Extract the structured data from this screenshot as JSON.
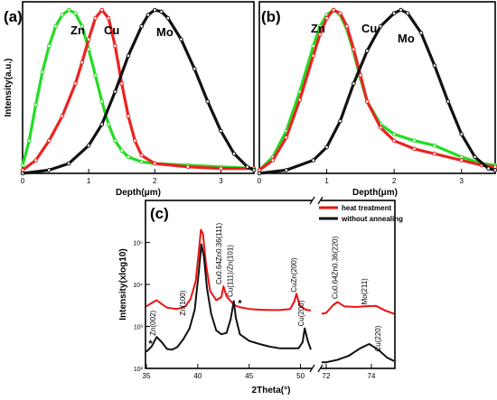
{
  "chart_data": [
    {
      "type": "line",
      "panel_label": "(a)",
      "xlabel": "Depth(μm)",
      "ylabel": "Intensity(a.u.)",
      "xlim": [
        0,
        3.5
      ],
      "ylim": [
        0,
        1.05
      ],
      "x_ticks": [
        0,
        1,
        2,
        3
      ],
      "y_ticks": [],
      "grid": false,
      "legend": "none",
      "series": [
        {
          "name": "Zn",
          "color": "#22dd22",
          "points": [
            [
              0,
              0.05
            ],
            [
              0.1,
              0.2
            ],
            [
              0.2,
              0.42
            ],
            [
              0.3,
              0.62
            ],
            [
              0.4,
              0.78
            ],
            [
              0.5,
              0.9
            ],
            [
              0.6,
              0.97
            ],
            [
              0.7,
              1.0
            ],
            [
              0.8,
              0.98
            ],
            [
              0.9,
              0.9
            ],
            [
              1.0,
              0.76
            ],
            [
              1.1,
              0.6
            ],
            [
              1.2,
              0.44
            ],
            [
              1.3,
              0.3
            ],
            [
              1.4,
              0.2
            ],
            [
              1.5,
              0.14
            ],
            [
              1.6,
              0.1
            ],
            [
              1.8,
              0.07
            ],
            [
              2.0,
              0.06
            ],
            [
              2.5,
              0.05
            ],
            [
              3.0,
              0.04
            ],
            [
              3.5,
              0.03
            ]
          ]
        },
        {
          "name": "Cu",
          "color": "#ee2222",
          "points": [
            [
              0,
              0.02
            ],
            [
              0.2,
              0.08
            ],
            [
              0.4,
              0.2
            ],
            [
              0.6,
              0.35
            ],
            [
              0.8,
              0.55
            ],
            [
              0.9,
              0.68
            ],
            [
              1.0,
              0.82
            ],
            [
              1.1,
              0.95
            ],
            [
              1.2,
              1.0
            ],
            [
              1.3,
              0.95
            ],
            [
              1.4,
              0.78
            ],
            [
              1.5,
              0.55
            ],
            [
              1.6,
              0.35
            ],
            [
              1.7,
              0.2
            ],
            [
              1.8,
              0.11
            ],
            [
              2.0,
              0.06
            ],
            [
              2.5,
              0.04
            ],
            [
              3.0,
              0.03
            ],
            [
              3.5,
              0.03
            ]
          ]
        },
        {
          "name": "Mo",
          "color": "#111111",
          "points": [
            [
              0,
              0.0
            ],
            [
              0.4,
              0.02
            ],
            [
              0.7,
              0.06
            ],
            [
              1.0,
              0.17
            ],
            [
              1.2,
              0.3
            ],
            [
              1.4,
              0.5
            ],
            [
              1.6,
              0.72
            ],
            [
              1.8,
              0.9
            ],
            [
              1.9,
              0.97
            ],
            [
              2.0,
              1.0
            ],
            [
              2.1,
              0.99
            ],
            [
              2.2,
              0.95
            ],
            [
              2.4,
              0.82
            ],
            [
              2.6,
              0.64
            ],
            [
              2.8,
              0.44
            ],
            [
              3.0,
              0.26
            ],
            [
              3.2,
              0.12
            ],
            [
              3.4,
              0.04
            ],
            [
              3.5,
              0.02
            ]
          ]
        }
      ]
    },
    {
      "type": "line",
      "panel_label": "(b)",
      "xlabel": "Depth(μm)",
      "ylabel": "",
      "xlim": [
        0,
        3.5
      ],
      "ylim": [
        0,
        1.05
      ],
      "x_ticks": [
        0,
        1,
        2,
        3
      ],
      "y_ticks": [],
      "grid": false,
      "legend": "none",
      "series": [
        {
          "name": "Zn",
          "color": "#22dd22",
          "points": [
            [
              0,
              0.02
            ],
            [
              0.2,
              0.1
            ],
            [
              0.4,
              0.26
            ],
            [
              0.6,
              0.5
            ],
            [
              0.8,
              0.78
            ],
            [
              0.9,
              0.9
            ],
            [
              1.0,
              0.97
            ],
            [
              1.1,
              1.0
            ],
            [
              1.2,
              0.97
            ],
            [
              1.3,
              0.88
            ],
            [
              1.4,
              0.74
            ],
            [
              1.5,
              0.58
            ],
            [
              1.6,
              0.44
            ],
            [
              1.8,
              0.3
            ],
            [
              2.0,
              0.24
            ],
            [
              2.3,
              0.2
            ],
            [
              2.6,
              0.17
            ],
            [
              3.0,
              0.1
            ],
            [
              3.3,
              0.06
            ],
            [
              3.5,
              0.05
            ]
          ]
        },
        {
          "name": "Cu",
          "color": "#ee2222",
          "points": [
            [
              0,
              0.02
            ],
            [
              0.2,
              0.08
            ],
            [
              0.4,
              0.22
            ],
            [
              0.6,
              0.45
            ],
            [
              0.8,
              0.72
            ],
            [
              0.9,
              0.85
            ],
            [
              1.0,
              0.95
            ],
            [
              1.1,
              1.0
            ],
            [
              1.2,
              0.98
            ],
            [
              1.3,
              0.9
            ],
            [
              1.4,
              0.76
            ],
            [
              1.5,
              0.6
            ],
            [
              1.6,
              0.44
            ],
            [
              1.8,
              0.28
            ],
            [
              2.0,
              0.2
            ],
            [
              2.3,
              0.15
            ],
            [
              2.6,
              0.12
            ],
            [
              3.0,
              0.08
            ],
            [
              3.3,
              0.05
            ],
            [
              3.5,
              0.04
            ]
          ]
        },
        {
          "name": "Mo",
          "color": "#111111",
          "points": [
            [
              0,
              0.0
            ],
            [
              0.4,
              0.02
            ],
            [
              0.8,
              0.08
            ],
            [
              1.0,
              0.16
            ],
            [
              1.2,
              0.32
            ],
            [
              1.4,
              0.55
            ],
            [
              1.6,
              0.75
            ],
            [
              1.8,
              0.9
            ],
            [
              2.0,
              0.98
            ],
            [
              2.1,
              1.0
            ],
            [
              2.2,
              0.98
            ],
            [
              2.4,
              0.86
            ],
            [
              2.6,
              0.66
            ],
            [
              2.8,
              0.44
            ],
            [
              3.0,
              0.24
            ],
            [
              3.2,
              0.1
            ],
            [
              3.4,
              0.03
            ],
            [
              3.5,
              0.02
            ]
          ]
        }
      ]
    },
    {
      "type": "line",
      "panel_label": "(c)",
      "xlabel": "2Theta(°)",
      "ylabel": "Intensity(xlog10)",
      "y_scale": "log",
      "ylim": [
        100,
        1000000
      ],
      "y_ticks": [
        100,
        1000,
        10000,
        100000
      ],
      "y_tick_labels": [
        "10²",
        "10³",
        "10⁴",
        "10⁵"
      ],
      "x_axis_broken": true,
      "x_segments": [
        {
          "xlim": [
            35,
            51
          ],
          "ticks": [
            35,
            40,
            45,
            50
          ]
        },
        {
          "xlim": [
            71.8,
            75
          ],
          "ticks": [
            72,
            74
          ]
        }
      ],
      "grid": false,
      "legend": "top-right",
      "series": [
        {
          "name": "heat treatment",
          "color": "#ee1111",
          "points": [
            [
              35,
              3000
            ],
            [
              35.5,
              3600
            ],
            [
              36.0,
              4200
            ],
            [
              36.5,
              3400
            ],
            [
              37,
              2800
            ],
            [
              38,
              2600
            ],
            [
              38.8,
              3000
            ],
            [
              39.3,
              4500
            ],
            [
              39.8,
              12000
            ],
            [
              40.1,
              60000
            ],
            [
              40.3,
              200000
            ],
            [
              40.5,
              160000
            ],
            [
              40.8,
              30000
            ],
            [
              41.2,
              7000
            ],
            [
              41.8,
              4200
            ],
            [
              42.3,
              5000
            ],
            [
              42.5,
              9000
            ],
            [
              42.8,
              5200
            ],
            [
              43.2,
              4000
            ],
            [
              43.6,
              3200
            ],
            [
              44,
              2900
            ],
            [
              45,
              2600
            ],
            [
              46,
              2500
            ],
            [
              47,
              2450
            ],
            [
              48,
              2450
            ],
            [
              49,
              2600
            ],
            [
              49.4,
              4000
            ],
            [
              49.6,
              6000
            ],
            [
              49.9,
              3200
            ],
            [
              50.5,
              2500
            ],
            [
              51,
              2400
            ],
            [
              71.8,
              2000
            ],
            [
              72.0,
              2100
            ],
            [
              72.3,
              3200
            ],
            [
              72.5,
              3800
            ],
            [
              72.8,
              3000
            ],
            [
              73.3,
              2900
            ],
            [
              73.7,
              3000
            ],
            [
              74.2,
              3100
            ],
            [
              74.6,
              2400
            ],
            [
              75,
              2000
            ]
          ]
        },
        {
          "name": "without annealing",
          "color": "#111111",
          "points": [
            [
              35,
              250
            ],
            [
              35.5,
              330
            ],
            [
              36.0,
              560
            ],
            [
              36.5,
              420
            ],
            [
              37,
              290
            ],
            [
              37.5,
              280
            ],
            [
              38,
              320
            ],
            [
              38.6,
              500
            ],
            [
              39.2,
              900
            ],
            [
              39.7,
              2500
            ],
            [
              40.1,
              20000
            ],
            [
              40.35,
              90000
            ],
            [
              40.6,
              45000
            ],
            [
              40.9,
              8000
            ],
            [
              41.3,
              2000
            ],
            [
              41.8,
              800
            ],
            [
              42.3,
              650
            ],
            [
              42.8,
              700
            ],
            [
              43.2,
              1500
            ],
            [
              43.5,
              4000
            ],
            [
              43.7,
              1600
            ],
            [
              44.1,
              650
            ],
            [
              45,
              450
            ],
            [
              46,
              380
            ],
            [
              47,
              330
            ],
            [
              48,
              300
            ],
            [
              49,
              300
            ],
            [
              49.8,
              300
            ],
            [
              50.2,
              420
            ],
            [
              50.4,
              900
            ],
            [
              50.7,
              450
            ],
            [
              51,
              280
            ],
            [
              71.8,
              140
            ],
            [
              72,
              140
            ],
            [
              72.5,
              160
            ],
            [
              73,
              200
            ],
            [
              73.5,
              300
            ],
            [
              73.9,
              380
            ],
            [
              74.3,
              280
            ],
            [
              74.7,
              180
            ],
            [
              75,
              150
            ]
          ]
        }
      ],
      "peak_labels": [
        {
          "text": "*",
          "x": 35.4,
          "y": 330
        },
        {
          "text": "Zn(002)",
          "x": 35.9,
          "y": 600
        },
        {
          "text": "Zn(100)",
          "x": 38.8,
          "y": 1800
        },
        {
          "text": "Cu0.64Zn0.36(111)",
          "x": 42.3,
          "y": 10000
        },
        {
          "text": "Cu(111)/Zn(101)",
          "x": 43.4,
          "y": 5000
        },
        {
          "text": "*",
          "x": 44.1,
          "y": 3000
        },
        {
          "text": "Cu(200)",
          "x": 50.3,
          "y": 1000
        },
        {
          "text": "CuZn(200)",
          "x": 49.6,
          "y": 6500
        },
        {
          "text": "Cu0.64Zn0.36(220)",
          "x": 72.5,
          "y": 4500
        },
        {
          "text": "Mo(211)",
          "x": 73.8,
          "y": 3300
        },
        {
          "text": "Cu(220)",
          "x": 74.4,
          "y": 250
        }
      ]
    }
  ]
}
